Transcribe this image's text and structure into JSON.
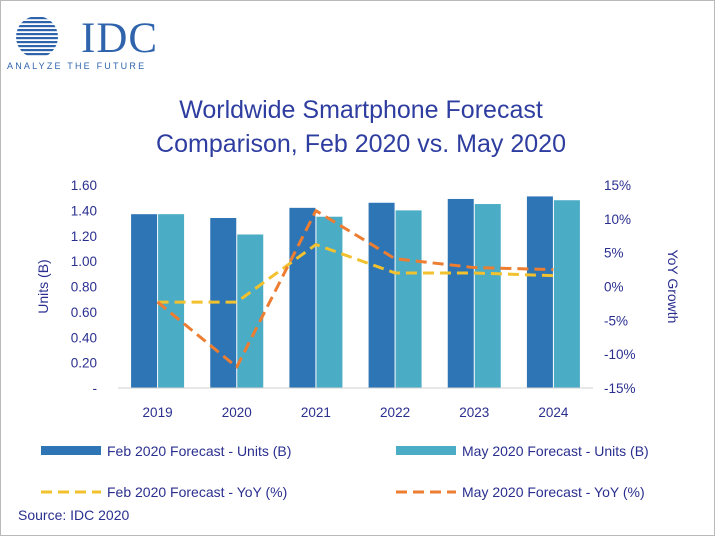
{
  "logo": {
    "name": "IDC",
    "tagline": "ANALYZE THE FUTURE",
    "color": "#2f64ad"
  },
  "title_line1": "Worldwide Smartphone Forecast",
  "title_line2": "Comparison, Feb 2020 vs. May 2020",
  "source": "Source: IDC 2020",
  "colors": {
    "feb_units": "#2e75b6",
    "may_units": "#4bacc6",
    "feb_yoy": "#f2c12e",
    "may_yoy": "#ed7d31",
    "text": "#2a2f8f"
  },
  "chart_data": {
    "type": "bar",
    "categories": [
      "2019",
      "2020",
      "2021",
      "2022",
      "2023",
      "2024"
    ],
    "title": "Worldwide Smartphone Forecast Comparison, Feb 2020 vs. May 2020",
    "ylabel": "Units (B)",
    "y2label": "YoY Growth",
    "ylim": [
      0,
      1.6
    ],
    "y_ticks": [
      "1.60",
      "1.40",
      "1.20",
      "1.00",
      "0.80",
      "0.60",
      "0.40",
      "0.20",
      "-"
    ],
    "y2lim": [
      -15,
      15
    ],
    "y2_ticks": [
      "15%",
      "10%",
      "5%",
      "0%",
      "-5%",
      "-10%",
      "-15%"
    ],
    "grid": false,
    "legend_position": "bottom",
    "series": [
      {
        "name": "Feb 2020 Forecast - Units (B)",
        "kind": "bar",
        "axis": "left",
        "values": [
          1.37,
          1.34,
          1.42,
          1.46,
          1.49,
          1.51
        ]
      },
      {
        "name": "May 2020 Forecast - Units (B)",
        "kind": "bar",
        "axis": "left",
        "values": [
          1.37,
          1.21,
          1.35,
          1.4,
          1.45,
          1.48
        ]
      },
      {
        "name": "Feb 2020 Forecast - YoY (%)",
        "kind": "dashed-line",
        "axis": "right",
        "values": [
          -2.3,
          -2.3,
          6.2,
          2.0,
          2.0,
          1.6
        ]
      },
      {
        "name": "May 2020 Forecast - YoY (%)",
        "kind": "dashed-line",
        "axis": "right",
        "values": [
          -2.3,
          -11.9,
          11.2,
          4.1,
          2.8,
          2.5
        ]
      }
    ]
  }
}
